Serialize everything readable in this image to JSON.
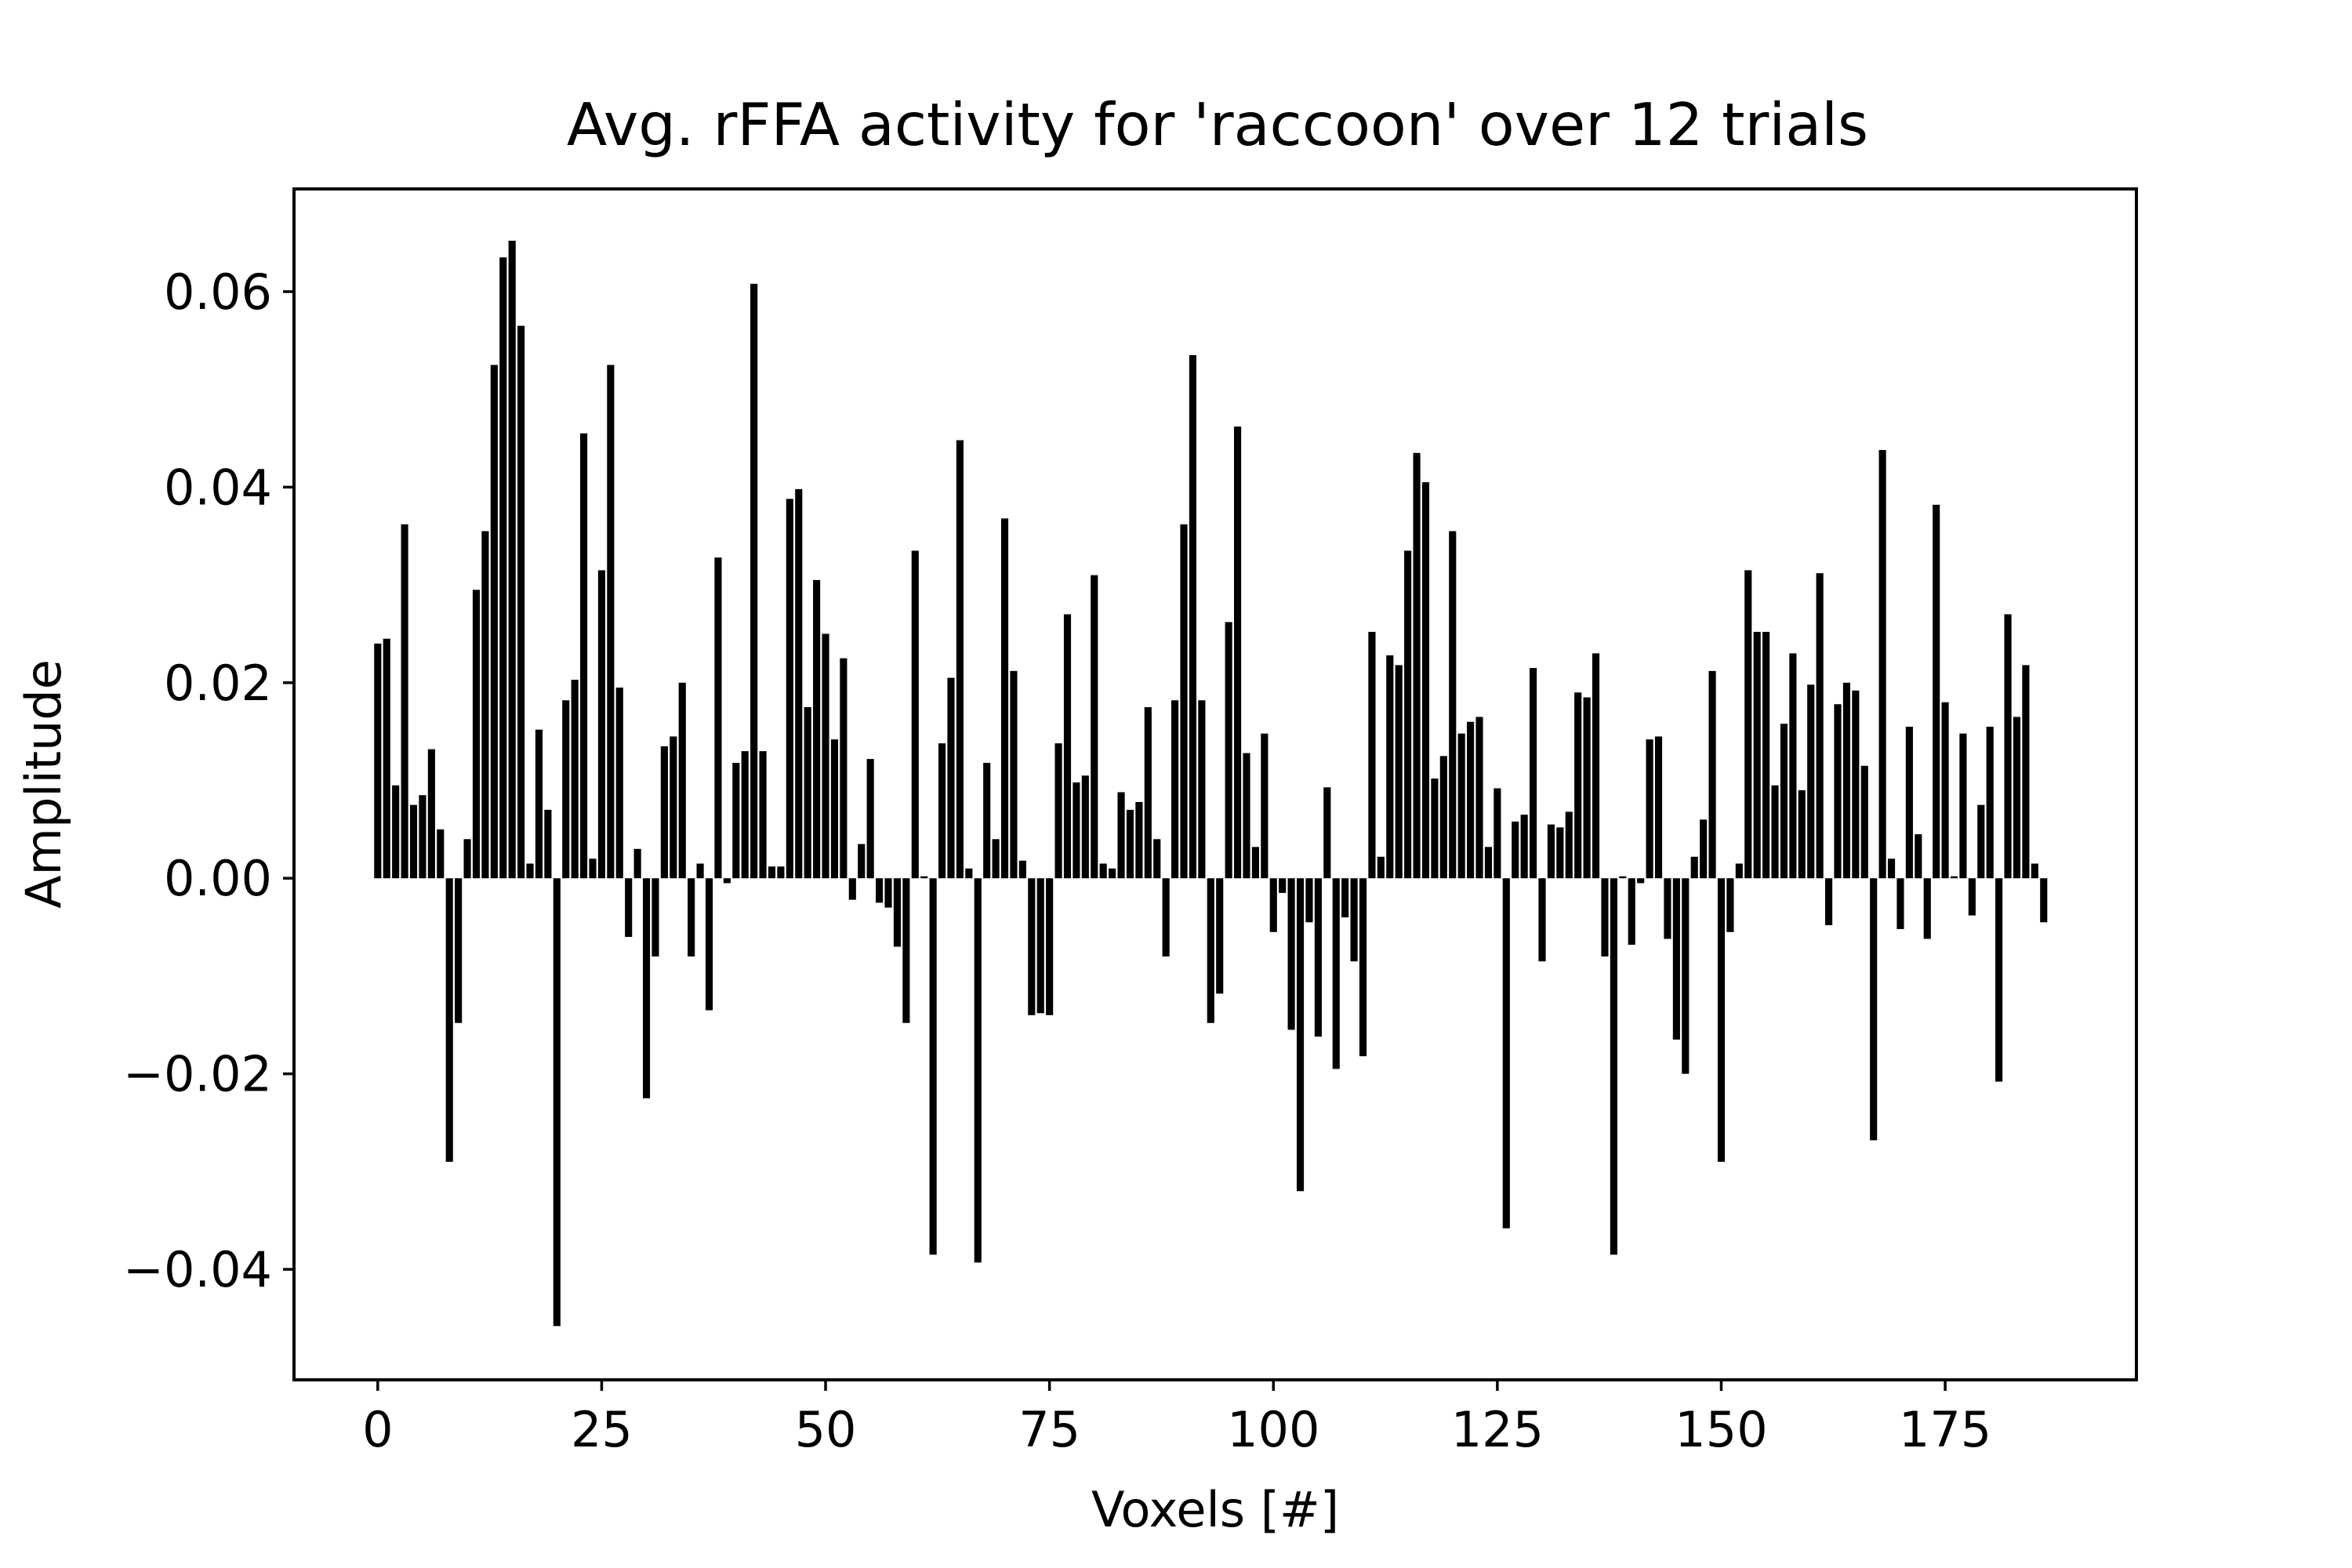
{
  "chart_data": {
    "type": "bar",
    "title": "Avg. rFFA activity for 'raccoon' over 12 trials",
    "xlabel": "Voxels [#]",
    "ylabel": "Amplitude",
    "xlim": [
      -9.35,
      196.35
    ],
    "ylim": [
      -0.0513,
      0.0705
    ],
    "xticks": [
      0,
      25,
      50,
      75,
      100,
      125,
      150,
      175
    ],
    "xtick_labels": [
      "0",
      "25",
      "50",
      "75",
      "100",
      "125",
      "150",
      "175"
    ],
    "yticks": [
      -0.04,
      -0.02,
      0.0,
      0.02,
      0.04,
      0.06
    ],
    "ytick_labels": [
      "−0.04",
      "−0.02",
      "0.00",
      "0.02",
      "0.04",
      "0.06"
    ],
    "grid": false,
    "bar_color": "#000000",
    "x": [
      0,
      1,
      2,
      3,
      4,
      5,
      6,
      7,
      8,
      9,
      10,
      11,
      12,
      13,
      14,
      15,
      16,
      17,
      18,
      19,
      20,
      21,
      22,
      23,
      24,
      25,
      26,
      27,
      28,
      29,
      30,
      31,
      32,
      33,
      34,
      35,
      36,
      37,
      38,
      39,
      40,
      41,
      42,
      43,
      44,
      45,
      46,
      47,
      48,
      49,
      50,
      51,
      52,
      53,
      54,
      55,
      56,
      57,
      58,
      59,
      60,
      61,
      62,
      63,
      64,
      65,
      66,
      67,
      68,
      69,
      70,
      71,
      72,
      73,
      74,
      75,
      76,
      77,
      78,
      79,
      80,
      81,
      82,
      83,
      84,
      85,
      86,
      87,
      88,
      89,
      90,
      91,
      92,
      93,
      94,
      95,
      96,
      97,
      98,
      99,
      100,
      101,
      102,
      103,
      104,
      105,
      106,
      107,
      108,
      109,
      110,
      111,
      112,
      113,
      114,
      115,
      116,
      117,
      118,
      119,
      120,
      121,
      122,
      123,
      124,
      125,
      126,
      127,
      128,
      129,
      130,
      131,
      132,
      133,
      134,
      135,
      136,
      137,
      138,
      139,
      140,
      141,
      142,
      143,
      144,
      145,
      146,
      147,
      148,
      149,
      150,
      151,
      152,
      153,
      154,
      155,
      156,
      157,
      158,
      159,
      160,
      161,
      162,
      163,
      164,
      165,
      166,
      167,
      168,
      169,
      170,
      171,
      172,
      173,
      174,
      175,
      176,
      177,
      178,
      179,
      180,
      181,
      182,
      183,
      184,
      185,
      186
    ],
    "values": [
      0.024,
      0.0245,
      0.0095,
      0.0362,
      0.0075,
      0.0085,
      0.0132,
      0.005,
      -0.029,
      -0.0148,
      0.004,
      0.0295,
      0.0355,
      0.0525,
      0.0635,
      0.0652,
      0.0565,
      0.0015,
      0.0152,
      0.007,
      -0.0458,
      0.0182,
      0.0203,
      0.0455,
      0.002,
      0.0315,
      0.0525,
      0.0195,
      -0.006,
      0.003,
      -0.0225,
      -0.008,
      0.0135,
      0.0145,
      0.02,
      -0.008,
      0.0015,
      -0.0135,
      0.0328,
      -0.0005,
      0.0118,
      0.013,
      0.0608,
      0.013,
      0.0012,
      0.0012,
      0.0388,
      0.0398,
      0.0175,
      0.0305,
      0.025,
      0.0142,
      0.0225,
      -0.0022,
      0.0035,
      0.0122,
      -0.0025,
      -0.003,
      -0.007,
      -0.0148,
      0.0335,
      0.0002,
      -0.0385,
      0.0138,
      0.0205,
      0.0448,
      0.001,
      -0.0393,
      0.0118,
      0.004,
      0.0368,
      0.0212,
      0.0018,
      -0.014,
      -0.0138,
      -0.014,
      0.0138,
      0.027,
      0.0098,
      0.0105,
      0.031,
      0.0015,
      0.001,
      0.0088,
      0.007,
      0.0078,
      0.0175,
      0.004,
      -0.008,
      0.0182,
      0.0362,
      0.0535,
      0.0182,
      -0.0148,
      -0.0118,
      0.0262,
      0.0462,
      0.0128,
      0.0032,
      0.0148,
      -0.0055,
      -0.0015,
      -0.0155,
      -0.032,
      -0.0045,
      -0.0162,
      0.0093,
      -0.0195,
      -0.004,
      -0.0085,
      -0.0182,
      0.0252,
      0.0022,
      0.0228,
      0.0218,
      0.0335,
      0.0435,
      0.0405,
      0.0102,
      0.0125,
      0.0355,
      0.0148,
      0.016,
      0.0165,
      0.0032,
      0.0092,
      -0.0358,
      0.0058,
      0.0065,
      0.0215,
      -0.0085,
      0.0055,
      0.0052,
      0.0068,
      0.019,
      0.0185,
      0.023,
      -0.008,
      -0.0385,
      0.0002,
      -0.0068,
      -0.0005,
      0.0142,
      0.0145,
      -0.0062,
      -0.0165,
      -0.02,
      0.0022,
      0.006,
      0.0212,
      -0.029,
      -0.0055,
      0.0015,
      0.0315,
      0.0252,
      0.0252,
      0.0095,
      0.0158,
      0.023,
      0.009,
      0.0198,
      0.0312,
      -0.0048,
      0.0178,
      0.02,
      0.0192,
      0.0115,
      -0.0268,
      0.0438,
      0.002,
      -0.0052,
      0.0155,
      0.0045,
      -0.0062,
      0.0382,
      0.018,
      0.0002,
      0.0148,
      -0.0038,
      0.0075,
      0.0155,
      -0.0208,
      0.027,
      0.0165,
      0.0218,
      0.0015,
      -0.0045
    ]
  }
}
